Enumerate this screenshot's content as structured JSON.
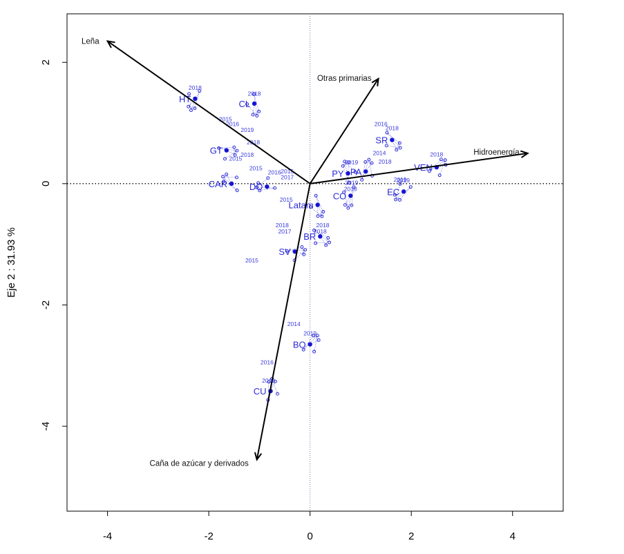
{
  "chart_data": {
    "type": "scatter",
    "title": "",
    "xlabel": "",
    "ylabel": "Eje 2 :  31.93 %",
    "xlim": [
      -4.8,
      5.0
    ],
    "ylim": [
      -5.4,
      2.8
    ],
    "xticks": [
      -4,
      -2,
      0,
      2,
      4
    ],
    "yticks": [
      2,
      0,
      -2,
      -4
    ],
    "xtick_labels": [
      "-4",
      "-2",
      "0",
      "2",
      "4"
    ],
    "ytick_labels": [
      "2",
      "0",
      "-2",
      "-4"
    ],
    "reference_lines": [
      "x = 0",
      "y = 0"
    ],
    "colors": {
      "points": "#1414d2",
      "arrows": "#000000",
      "axes": "#000000"
    },
    "variables": [
      {
        "name": "Leña",
        "x": -4.0,
        "y": 2.35
      },
      {
        "name": "Otras primarias",
        "x": 1.35,
        "y": 1.73
      },
      {
        "name": "Hidroenergía",
        "x": 4.3,
        "y": 0.5
      },
      {
        "name": "Caña de azúcar y derivados",
        "x": -1.05,
        "y": -4.55
      }
    ],
    "countries": [
      {
        "name": "HT",
        "x": -2.27,
        "y": 1.4
      },
      {
        "name": "CL",
        "x": -1.1,
        "y": 1.32
      },
      {
        "name": "SR",
        "x": 1.62,
        "y": 0.72
      },
      {
        "name": "GT",
        "x": -1.65,
        "y": 0.55
      },
      {
        "name": "VEN",
        "x": 2.5,
        "y": 0.27
      },
      {
        "name": "PA",
        "x": 1.1,
        "y": 0.2
      },
      {
        "name": "PY",
        "x": 0.75,
        "y": 0.17
      },
      {
        "name": "CAR",
        "x": -1.55,
        "y": 0.0
      },
      {
        "name": "DO",
        "x": -0.85,
        "y": -0.05
      },
      {
        "name": "EC",
        "x": 1.85,
        "y": -0.13
      },
      {
        "name": "CO",
        "x": 0.8,
        "y": -0.2
      },
      {
        "name": "Latam",
        "x": 0.15,
        "y": -0.35
      },
      {
        "name": "BR",
        "x": 0.2,
        "y": -0.87
      },
      {
        "name": "SV",
        "x": -0.3,
        "y": -1.12
      },
      {
        "name": "BO",
        "x": 0.0,
        "y": -2.65
      },
      {
        "name": "CU",
        "x": -0.78,
        "y": -3.42
      }
    ],
    "year_labels": [
      {
        "text": "2018",
        "x": -2.27,
        "y": 1.55
      },
      {
        "text": "2018",
        "x": -1.1,
        "y": 1.45
      },
      {
        "text": "2015",
        "x": -1.67,
        "y": 1.03
      },
      {
        "text": "2016",
        "x": -1.53,
        "y": 0.95
      },
      {
        "text": "2019",
        "x": -1.24,
        "y": 0.85
      },
      {
        "text": "2018",
        "x": -1.12,
        "y": 0.65
      },
      {
        "text": "2018",
        "x": -1.24,
        "y": 0.44
      },
      {
        "text": "2015",
        "x": -0.45,
        "y": 0.17
      },
      {
        "text": "2016",
        "x": -0.7,
        "y": 0.15
      },
      {
        "text": "2017",
        "x": -0.45,
        "y": 0.07
      },
      {
        "text": "2015",
        "x": -1.07,
        "y": 0.22
      },
      {
        "text": "2015",
        "x": -1.47,
        "y": 0.38
      },
      {
        "text": "2016",
        "x": 1.4,
        "y": 0.95
      },
      {
        "text": "2018",
        "x": 1.62,
        "y": 0.88
      },
      {
        "text": "2018",
        "x": 2.5,
        "y": 0.45
      },
      {
        "text": "2019",
        "x": 0.82,
        "y": 0.32
      },
      {
        "text": "2018",
        "x": 1.48,
        "y": 0.33
      },
      {
        "text": "2014",
        "x": 1.37,
        "y": 0.47
      },
      {
        "text": "2019",
        "x": 1.78,
        "y": 0.03
      },
      {
        "text": "2019",
        "x": 0.82,
        "y": -0.02
      },
      {
        "text": "2019",
        "x": 1.84,
        "y": 0.02
      },
      {
        "text": "2018",
        "x": 0.8,
        "y": -0.12
      },
      {
        "text": "2015",
        "x": -0.47,
        "y": -0.3
      },
      {
        "text": "2018",
        "x": -0.55,
        "y": -0.72
      },
      {
        "text": "2017",
        "x": -0.5,
        "y": -0.82
      },
      {
        "text": "2018",
        "x": 0.25,
        "y": -0.72
      },
      {
        "text": "2018",
        "x": 0.2,
        "y": -0.82
      },
      {
        "text": "2015",
        "x": -1.15,
        "y": -1.3
      },
      {
        "text": "2014",
        "x": -0.32,
        "y": -2.35
      },
      {
        "text": "2019",
        "x": 0.0,
        "y": -2.5
      },
      {
        "text": "2016",
        "x": -0.85,
        "y": -2.98
      },
      {
        "text": "2018",
        "x": -0.82,
        "y": -3.28
      }
    ]
  }
}
